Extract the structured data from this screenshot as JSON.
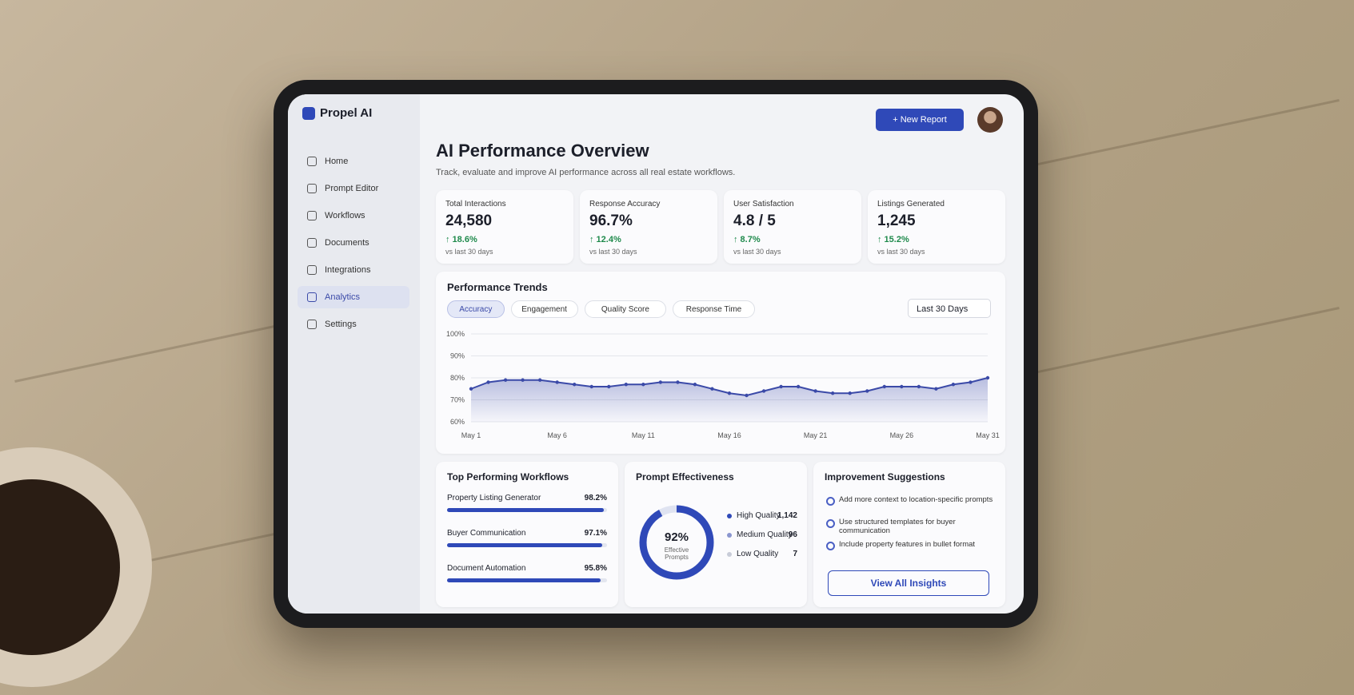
{
  "app": {
    "name": "Propel AI"
  },
  "nav": [
    {
      "label": "Home",
      "active": false
    },
    {
      "label": "Prompt Editor",
      "active": false
    },
    {
      "label": "Workflows",
      "active": false
    },
    {
      "label": "Documents",
      "active": false
    },
    {
      "label": "Integrations",
      "active": false
    },
    {
      "label": "Analytics",
      "active": true
    },
    {
      "label": "Settings",
      "active": false
    }
  ],
  "header": {
    "title": "AI Performance Overview",
    "subtitle": "Track, evaluate and improve AI performance across all real estate workflows.",
    "button": "+ New Report"
  },
  "kpis": [
    {
      "label": "Total Interactions",
      "value": "24,580",
      "change": "↑ 18.6%",
      "period": "vs last 30 days"
    },
    {
      "label": "Response Accuracy",
      "value": "96.7%",
      "change": "↑ 12.4%",
      "period": "vs last 30 days"
    },
    {
      "label": "User Satisfaction",
      "value": "4.8 / 5",
      "change": "↑ 8.7%",
      "period": "vs last 30 days"
    },
    {
      "label": "Listings Generated",
      "value": "1,245",
      "change": "↑ 15.2%",
      "period": "vs last 30 days"
    }
  ],
  "trends": {
    "title": "Performance Trends",
    "tabs": [
      {
        "label": "Accuracy",
        "active": true
      },
      {
        "label": "Engagement",
        "active": false
      },
      {
        "label": "Quality Score",
        "active": false
      },
      {
        "label": "Response Time",
        "active": false
      }
    ],
    "range": "Last 30 Days"
  },
  "chart_data": {
    "type": "line",
    "categories": [
      "May 1",
      null,
      null,
      null,
      null,
      "May 6",
      null,
      null,
      null,
      null,
      "May 11",
      null,
      null,
      null,
      null,
      "May 16",
      null,
      null,
      null,
      null,
      "May 21",
      null,
      null,
      null,
      null,
      "May 26",
      null,
      null,
      null,
      null,
      "May 31"
    ],
    "values": [
      75,
      78,
      79,
      79,
      79,
      78,
      77,
      76,
      76,
      77,
      77,
      78,
      78,
      77,
      75,
      73,
      72,
      74,
      76,
      76,
      74,
      73,
      73,
      74,
      76,
      76,
      76,
      75,
      77,
      78,
      80
    ],
    "color": "#3b4aa8",
    "ylim": [
      60,
      100
    ],
    "yticks": [
      {
        "value": 60,
        "label": "60%"
      },
      {
        "value": 70,
        "label": "70%"
      },
      {
        "value": 80,
        "label": "80%"
      },
      {
        "value": 90,
        "label": "90%"
      },
      {
        "value": 100,
        "label": "100%"
      }
    ],
    "grid": true
  },
  "workflows": {
    "title": "Top Performing Workflows",
    "items": [
      {
        "name": "Property Listing Generator",
        "value": 98.2,
        "value_label": "98.2%"
      },
      {
        "name": "Buyer Communication",
        "value": 97.1,
        "value_label": "97.1%"
      },
      {
        "name": "Document Automation",
        "value": 95.8,
        "value_label": "95.8%"
      }
    ]
  },
  "prompt": {
    "title": "Prompt Effectiveness",
    "value": 92,
    "value_label": "92%",
    "caption": "Effective Prompts",
    "items": [
      {
        "name": "High Quality",
        "value": 1142,
        "value_label": "1,142",
        "color": "#2f49b8"
      },
      {
        "name": "Medium Quality",
        "value": 96,
        "color": "#8a96cf"
      },
      {
        "name": "Low Quality",
        "value": 7,
        "color": "#c8ccd8"
      }
    ]
  },
  "suggestions": {
    "title": "Improvement Suggestions",
    "items": [
      "Add more context to location-specific prompts",
      "Use structured templates for buyer communication",
      "Include property features in bullet format"
    ],
    "button": "View All Insights"
  }
}
